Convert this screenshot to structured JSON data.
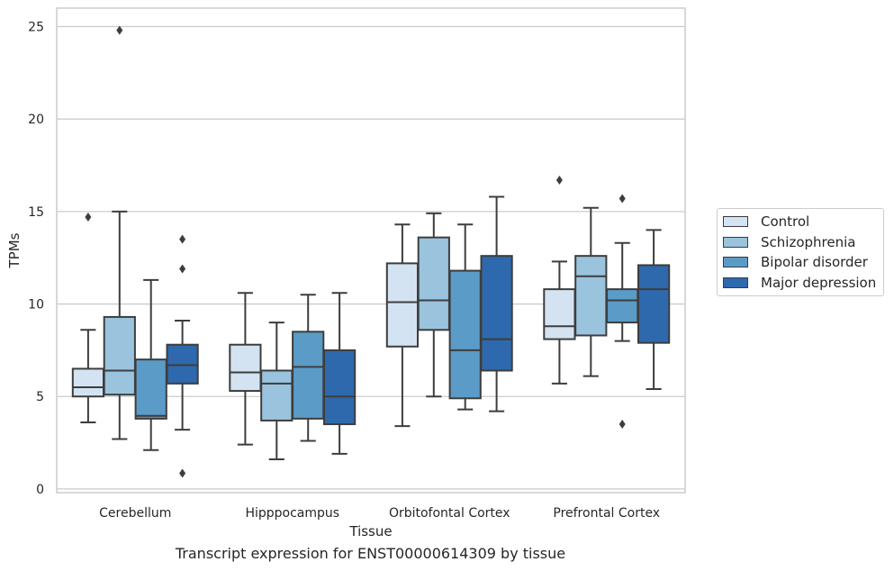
{
  "chart_data": {
    "type": "box",
    "xlabel": "Tissue",
    "ylabel": "TPMs",
    "ylim": [
      -0.2,
      26
    ],
    "yticks": [
      0,
      5,
      10,
      15,
      20,
      25
    ],
    "categories": [
      "Cerebellum",
      "Hipppocampus",
      "Orbitofontal Cortex",
      "Prefrontal Cortex"
    ],
    "grid": "horizontal",
    "legend_position": "right",
    "series": [
      {
        "name": "Control",
        "color": "#d4e3f1",
        "boxes": [
          {
            "whislo": 3.6,
            "q1": 5.0,
            "med": 5.5,
            "q3": 6.5,
            "whishi": 8.6,
            "fliers": [
              14.7
            ]
          },
          {
            "whislo": 2.4,
            "q1": 5.3,
            "med": 6.3,
            "q3": 7.8,
            "whishi": 10.6,
            "fliers": []
          },
          {
            "whislo": 3.4,
            "q1": 7.7,
            "med": 10.1,
            "q3": 12.2,
            "whishi": 14.3,
            "fliers": []
          },
          {
            "whislo": 5.7,
            "q1": 8.1,
            "med": 8.8,
            "q3": 10.8,
            "whishi": 12.3,
            "fliers": [
              16.7
            ]
          }
        ]
      },
      {
        "name": "Schizophrenia",
        "color": "#9ac4dd",
        "boxes": [
          {
            "whislo": 2.7,
            "q1": 5.1,
            "med": 6.4,
            "q3": 9.3,
            "whishi": 15.0,
            "fliers": [
              24.8
            ]
          },
          {
            "whislo": 1.6,
            "q1": 3.7,
            "med": 5.7,
            "q3": 6.4,
            "whishi": 9.0,
            "fliers": []
          },
          {
            "whislo": 5.0,
            "q1": 8.6,
            "med": 10.2,
            "q3": 13.6,
            "whishi": 14.9,
            "fliers": []
          },
          {
            "whislo": 6.1,
            "q1": 8.3,
            "med": 11.5,
            "q3": 12.6,
            "whishi": 15.2,
            "fliers": []
          }
        ]
      },
      {
        "name": "Bipolar disorder",
        "color": "#5b9bc8",
        "boxes": [
          {
            "whislo": 2.1,
            "q1": 3.8,
            "med": 3.95,
            "q3": 7.0,
            "whishi": 11.3,
            "fliers": []
          },
          {
            "whislo": 2.6,
            "q1": 3.8,
            "med": 6.6,
            "q3": 8.5,
            "whishi": 10.5,
            "fliers": []
          },
          {
            "whislo": 4.3,
            "q1": 4.9,
            "med": 7.5,
            "q3": 11.8,
            "whishi": 14.3,
            "fliers": []
          },
          {
            "whislo": 8.0,
            "q1": 9.0,
            "med": 10.2,
            "q3": 10.8,
            "whishi": 13.3,
            "fliers": [
              3.5,
              15.7
            ]
          }
        ]
      },
      {
        "name": "Major depression",
        "color": "#2e69ad",
        "boxes": [
          {
            "whislo": 3.2,
            "q1": 5.7,
            "med": 6.7,
            "q3": 7.8,
            "whishi": 9.1,
            "fliers": [
              0.85,
              11.9,
              13.5
            ]
          },
          {
            "whislo": 1.9,
            "q1": 3.5,
            "med": 5.0,
            "q3": 7.5,
            "whishi": 10.6,
            "fliers": []
          },
          {
            "whislo": 4.2,
            "q1": 6.4,
            "med": 8.1,
            "q3": 12.6,
            "whishi": 15.8,
            "fliers": []
          },
          {
            "whislo": 5.4,
            "q1": 7.9,
            "med": 10.8,
            "q3": 12.1,
            "whishi": 14.0,
            "fliers": []
          }
        ]
      }
    ]
  },
  "caption": "Transcript expression for ENST00000614309 by tissue"
}
